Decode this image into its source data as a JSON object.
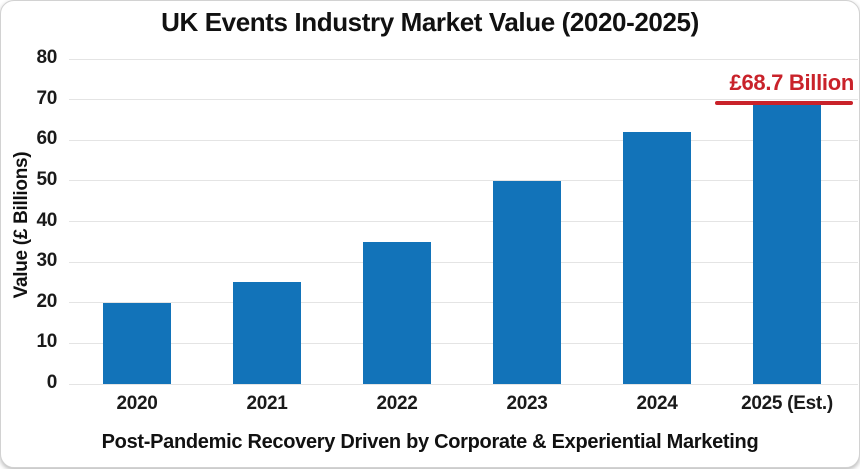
{
  "chart_data": {
    "type": "bar",
    "title": "UK Events Industry Market Value (2020-2025)",
    "categories": [
      "2020",
      "2021",
      "2022",
      "2023",
      "2024",
      "2025 (Est.)"
    ],
    "values": [
      20,
      25,
      35,
      50,
      62,
      68.7
    ],
    "xlabel": "Post-Pandemic Recovery Driven by Corporate & Experiential Marketing",
    "ylabel": "Value (£ Billions)",
    "ylim": [
      0,
      80
    ],
    "yticks": [
      0,
      10,
      20,
      30,
      40,
      50,
      60,
      70,
      80
    ],
    "grid": true,
    "legend": false,
    "bar_color": "#1273b9",
    "annotation": {
      "text": "£68.7 Billion",
      "color": "#c9222a",
      "underline": true,
      "target_category": "2025 (Est.)",
      "value": 68.7
    }
  }
}
